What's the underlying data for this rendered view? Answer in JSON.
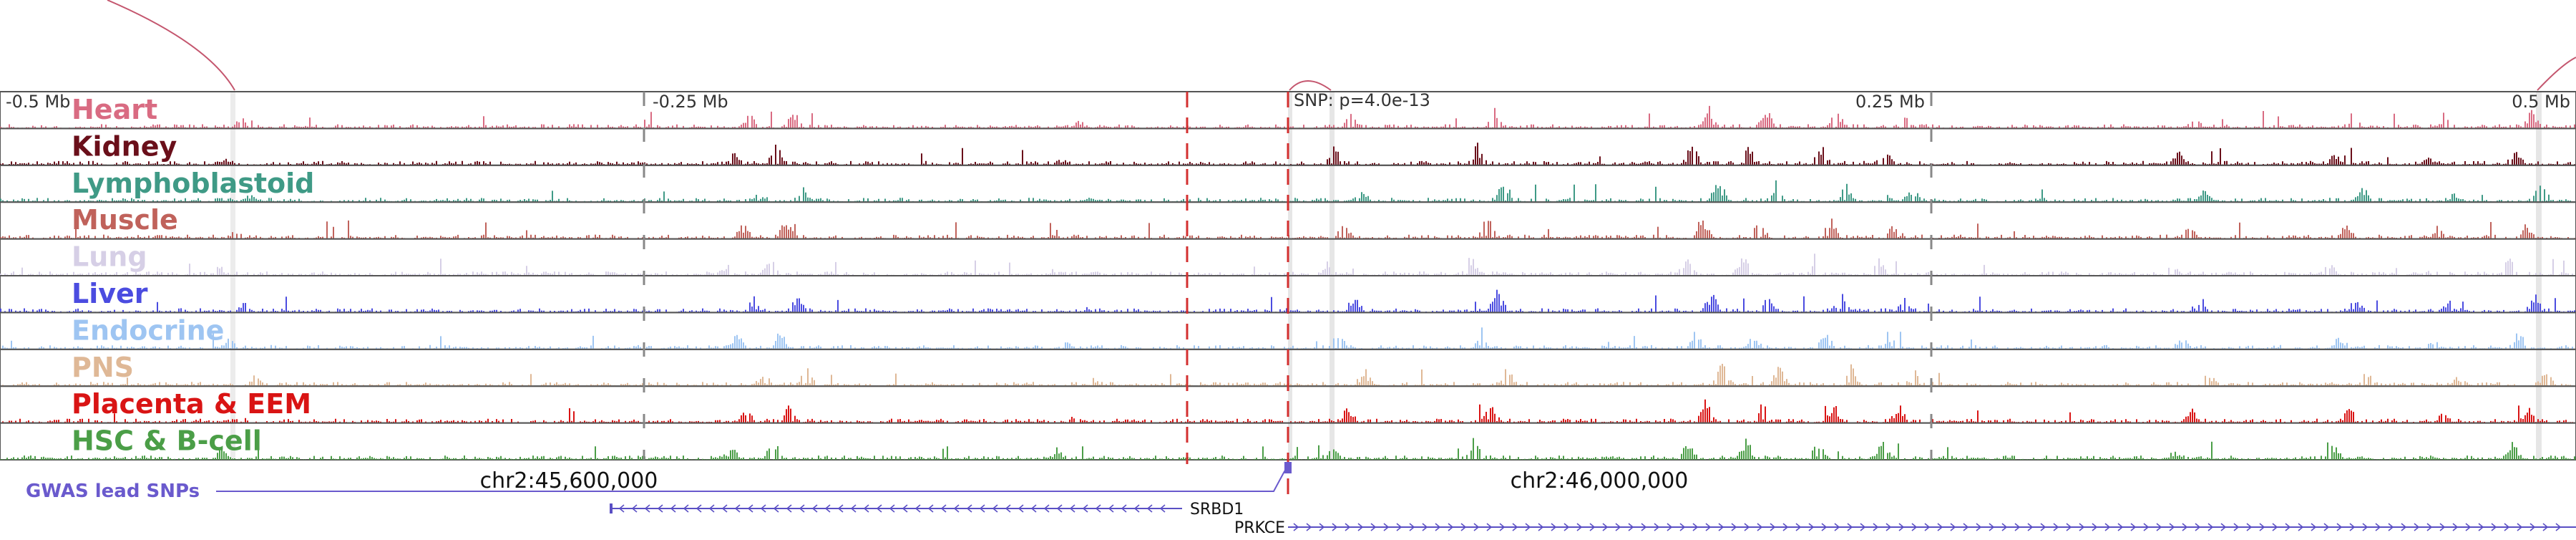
{
  "tracks": [
    {
      "label": "Heart",
      "color": "#d96b82",
      "variant": 1
    },
    {
      "label": "Kidney",
      "color": "#6a0f1a",
      "variant": 2
    },
    {
      "label": "Lymphoblastoid",
      "color": "#3f9a86",
      "variant": 3
    },
    {
      "label": "Muscle",
      "color": "#c0625b",
      "variant": 4
    },
    {
      "label": "Lung",
      "color": "#d6cfe6",
      "variant": 5
    },
    {
      "label": "Liver",
      "color": "#4b4ce0",
      "variant": 6
    },
    {
      "label": "Endocrine",
      "color": "#9ec5f2",
      "variant": 7
    },
    {
      "label": "PNS",
      "color": "#dfb896",
      "variant": 8
    },
    {
      "label": "Placenta & EEM",
      "color": "#d91414",
      "variant": 9
    },
    {
      "label": "HSC & B-cell",
      "color": "#4b9e47",
      "variant": 10
    }
  ],
  "scale_labels": {
    "left": "-0.5 Mb",
    "left_mid": "-0.25 Mb",
    "right_mid": "0.25 Mb",
    "right": "0.5 Mb"
  },
  "snp_label": "SNP: p=4.0e-13",
  "coordinate_labels": {
    "left": "chr2:45,600,000",
    "right": "chr2:46,000,000"
  },
  "gwas_label": "GWAS lead SNPs",
  "genes": [
    {
      "name": "SRBD1",
      "strand": "-"
    },
    {
      "name": "PRKCE",
      "strand": "+"
    }
  ],
  "colors": {
    "track_border": "#555555",
    "arc": "#c4566e",
    "gwas": "#6a5acd",
    "gene": "#5a4fc4",
    "dashed": "#d32f2f",
    "highlight": "#e3e3e3"
  }
}
